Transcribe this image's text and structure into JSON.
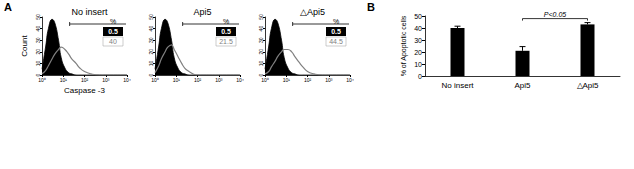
{
  "chart_data": [
    {
      "type": "histogram",
      "panel": "A",
      "title": "No insert",
      "xlabel": "Caspase -3",
      "ylabel": "Count",
      "log": "x",
      "x": [
        1,
        1.5,
        2,
        3,
        4,
        6,
        8,
        12,
        18,
        25,
        40,
        60,
        100,
        200,
        500,
        1000,
        10000
      ],
      "series": [
        {
          "type": "area",
          "color": "#000000",
          "values": [
            5,
            25,
            40,
            48,
            45,
            30,
            15,
            6,
            2,
            1,
            0,
            0,
            0,
            0,
            0,
            0,
            0
          ]
        },
        {
          "type": "line",
          "color": "#808080",
          "values": [
            1,
            4,
            8,
            14,
            18,
            22,
            24,
            22,
            18,
            14,
            10,
            6,
            3,
            1,
            0,
            0,
            0
          ]
        }
      ],
      "xlim": [
        1,
        10000
      ],
      "xticks": [
        {
          "value": 1,
          "label": "10⁰"
        },
        {
          "value": 10,
          "label": "10¹"
        },
        {
          "value": 100,
          "label": "10²"
        },
        {
          "value": 1000,
          "label": "10³"
        },
        {
          "value": 10000,
          "label": "10⁴"
        }
      ],
      "ylim": [
        0,
        50
      ],
      "yticks": [
        0,
        10,
        20,
        30,
        40,
        50
      ],
      "gate": [
        20,
        10000
      ],
      "gate_label": "%",
      "control_percent": 0.5,
      "sample_percent": 40
    },
    {
      "type": "histogram",
      "title": "Api5",
      "log": "x",
      "x": [
        1,
        1.5,
        2,
        3,
        4,
        6,
        8,
        12,
        18,
        25,
        40,
        60,
        100,
        200,
        500,
        1000,
        10000
      ],
      "series": [
        {
          "type": "area",
          "color": "#000000",
          "values": [
            5,
            25,
            40,
            48,
            45,
            30,
            15,
            6,
            2,
            1,
            0,
            0,
            0,
            0,
            0,
            0,
            0
          ]
        },
        {
          "type": "line",
          "color": "#808080",
          "values": [
            2,
            8,
            14,
            20,
            24,
            26,
            22,
            16,
            10,
            6,
            3,
            1,
            0,
            0,
            0,
            0,
            0
          ]
        }
      ],
      "xlim": [
        1,
        10000
      ],
      "xticks": [
        {
          "value": 1,
          "label": "10⁰"
        },
        {
          "value": 10,
          "label": "10¹"
        },
        {
          "value": 100,
          "label": "10²"
        },
        {
          "value": 1000,
          "label": "10³"
        },
        {
          "value": 10000,
          "label": "10⁴"
        }
      ],
      "ylim": [
        0,
        50
      ],
      "yticks": [
        0,
        10,
        20,
        30,
        40,
        50
      ],
      "gate": [
        20,
        10000
      ],
      "gate_label": "%",
      "control_percent": 0.5,
      "sample_percent": 21.5
    },
    {
      "type": "histogram",
      "title": "△Api5",
      "log": "x",
      "x": [
        1,
        1.5,
        2,
        3,
        4,
        6,
        8,
        12,
        18,
        25,
        40,
        60,
        100,
        200,
        500,
        1000,
        10000
      ],
      "series": [
        {
          "type": "area",
          "color": "#000000",
          "values": [
            5,
            25,
            40,
            48,
            45,
            30,
            15,
            6,
            2,
            1,
            0,
            0,
            0,
            0,
            0,
            0,
            0
          ]
        },
        {
          "type": "line",
          "color": "#808080",
          "values": [
            1,
            3,
            7,
            12,
            16,
            20,
            22,
            22,
            20,
            16,
            11,
            7,
            3,
            1,
            0,
            0,
            0
          ]
        }
      ],
      "xlim": [
        1,
        10000
      ],
      "xticks": [
        {
          "value": 1,
          "label": "10⁰"
        },
        {
          "value": 10,
          "label": "10¹"
        },
        {
          "value": 100,
          "label": "10²"
        },
        {
          "value": 1000,
          "label": "10³"
        },
        {
          "value": 10000,
          "label": "10⁴"
        }
      ],
      "ylim": [
        0,
        50
      ],
      "yticks": [
        0,
        10,
        20,
        30,
        40,
        50
      ],
      "gate": [
        20,
        10000
      ],
      "gate_label": "%",
      "control_percent": 0.5,
      "sample_percent": 44.5
    },
    {
      "type": "bar",
      "panel": "B",
      "ylabel": "% of Apoptotic cells",
      "categories": [
        "No insert",
        "Api5",
        "△Api5"
      ],
      "values": [
        40,
        21,
        43
      ],
      "errors": [
        1.5,
        3.5,
        1.5
      ],
      "color": "#000000",
      "ylim": [
        0,
        50
      ],
      "yticks": [
        0,
        10,
        20,
        30,
        40,
        50
      ],
      "grid": false,
      "annotations": [
        {
          "text": "P<0.05",
          "between": [
            "Api5",
            "△Api5"
          ]
        }
      ]
    }
  ]
}
